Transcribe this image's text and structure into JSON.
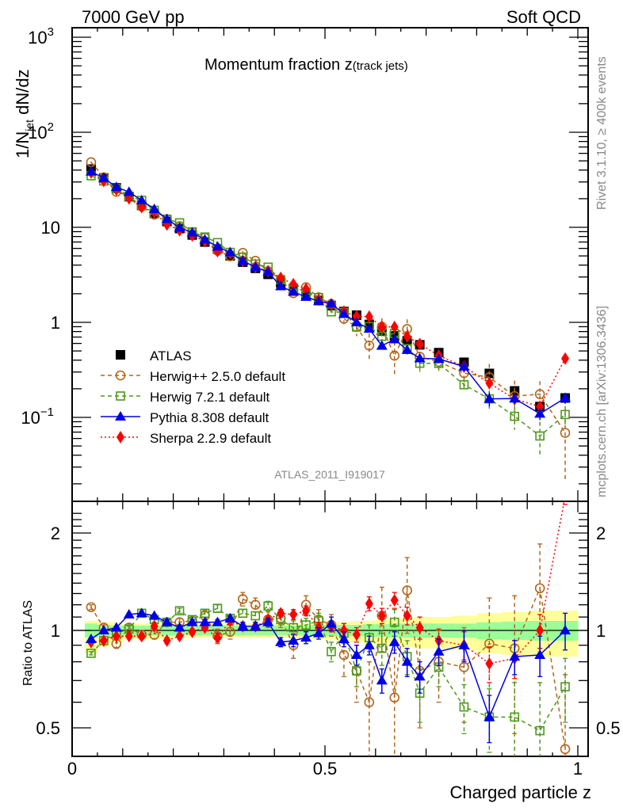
{
  "header": {
    "left": "7000 GeV pp",
    "right": "Soft QCD"
  },
  "side_labels": {
    "rivet": "Rivet 3.1.10, ≥ 400k events",
    "mcplots": "mcplots.cern.ch [arXiv:1306.3436]"
  },
  "chart_data": [
    {
      "type": "scatter",
      "panel": "main",
      "title": "Momentum fraction z",
      "title_suffix": "(track jets)",
      "xlabel": "Charged particle z",
      "ylabel": "1/N_jet dN/dz",
      "ylabel_parts": {
        "pre": "1/N",
        "sub": "jet",
        "post": " dN/dz"
      },
      "xlim": [
        0,
        1
      ],
      "ylim": [
        0.013,
        1300
      ],
      "yscale": "log",
      "yticks": [
        {
          "value": 1000,
          "base": "10",
          "exp": "3"
        },
        {
          "value": 100,
          "base": "10",
          "exp": "2"
        },
        {
          "value": 10,
          "base": "10",
          "exp": ""
        },
        {
          "value": 1,
          "base": "1",
          "exp": ""
        },
        {
          "value": 0.1,
          "base": "10",
          "exp": "−1"
        }
      ],
      "watermark": "ATLAS_2011_I919017",
      "legend_position": "bottom-left",
      "x": [
        0.0375,
        0.0625,
        0.0875,
        0.1125,
        0.1375,
        0.1625,
        0.1875,
        0.2125,
        0.2375,
        0.2625,
        0.2875,
        0.3125,
        0.3375,
        0.3625,
        0.3875,
        0.4125,
        0.4375,
        0.4625,
        0.4875,
        0.5125,
        0.5375,
        0.5625,
        0.5875,
        0.6125,
        0.6375,
        0.6625,
        0.6875,
        0.725,
        0.775,
        0.825,
        0.875,
        0.925,
        0.975
      ],
      "series": [
        {
          "name": "ATLAS",
          "color": "#000000",
          "marker": "square-filled",
          "line": "none",
          "values": [
            41,
            33,
            26,
            21,
            17,
            14,
            11.5,
            9.7,
            8.3,
            7.0,
            5.9,
            5.0,
            4.3,
            3.7,
            3.2,
            2.6,
            2.25,
            1.95,
            1.7,
            1.5,
            1.3,
            1.19,
            0.95,
            0.81,
            0.72,
            0.64,
            0.58,
            0.48,
            0.38,
            0.29,
            0.19,
            0.13,
            0.16
          ]
        },
        {
          "name": "Herwig++ 2.5.0 default",
          "color": "#b3661a",
          "marker": "circle-open",
          "line": "dashed"
        },
        {
          "name": "Herwig 7.2.1 default",
          "color": "#4c9a1a",
          "marker": "square-open",
          "line": "dashed"
        },
        {
          "name": "Pythia 8.308 default",
          "color": "#0000e6",
          "marker": "triangle-filled",
          "line": "solid"
        },
        {
          "name": "Sherpa 2.2.9 default",
          "color": "#ff0000",
          "marker": "diamond-filled",
          "line": "dotted"
        }
      ]
    },
    {
      "type": "scatter",
      "panel": "ratio",
      "xlabel": "Charged particle z",
      "ylabel": "Ratio to ATLAS",
      "xlim": [
        0,
        1
      ],
      "ylim": [
        0.42,
        2.4
      ],
      "yscale": "log",
      "yticks": [
        {
          "value": 0.5,
          "label": "0.5"
        },
        {
          "value": 1,
          "label": "1"
        },
        {
          "value": 2,
          "label": "2"
        }
      ],
      "xticks": [
        {
          "value": 0,
          "label": "0"
        },
        {
          "value": 0.5,
          "label": "0.5"
        },
        {
          "value": 1,
          "label": "1"
        }
      ],
      "reference_line": 1,
      "bands": {
        "stat_color": "#99ff99",
        "total_color": "#ffff99",
        "stat_halfwidth": [
          0.05,
          0.04,
          0.035,
          0.035,
          0.035,
          0.035,
          0.035,
          0.035,
          0.035,
          0.035,
          0.035,
          0.035,
          0.035,
          0.035,
          0.035,
          0.035,
          0.035,
          0.035,
          0.04,
          0.04,
          0.04,
          0.04,
          0.045,
          0.045,
          0.05,
          0.05,
          0.05,
          0.05,
          0.05,
          0.06,
          0.065,
          0.07,
          0.07
        ],
        "total_low": [
          0.15,
          0.11,
          0.08,
          0.06,
          0.06,
          0.06,
          0.06,
          0.05,
          0.05,
          0.05,
          0.05,
          0.05,
          0.05,
          0.05,
          0.05,
          0.05,
          0.05,
          0.05,
          0.06,
          0.06,
          0.07,
          0.08,
          0.09,
          0.1,
          0.1,
          0.11,
          0.12,
          0.12,
          0.13,
          0.15,
          0.16,
          0.17,
          0.17
        ],
        "total_high": [
          0.07,
          0.06,
          0.06,
          0.05,
          0.05,
          0.05,
          0.05,
          0.05,
          0.05,
          0.05,
          0.05,
          0.05,
          0.05,
          0.05,
          0.05,
          0.05,
          0.05,
          0.05,
          0.06,
          0.06,
          0.06,
          0.07,
          0.07,
          0.08,
          0.09,
          0.09,
          0.1,
          0.1,
          0.11,
          0.13,
          0.14,
          0.15,
          0.15
        ]
      },
      "series": [
        {
          "name": "Herwig++ 2.5.0 default",
          "values": [
            1.18,
            1.02,
            0.91,
            1.02,
            0.97,
            0.97,
            1.06,
            1.06,
            1.07,
            1.11,
            0.96,
            0.99,
            1.25,
            1.2,
            1.08,
            1.09,
            0.9,
            1.2,
            1.08,
            1.04,
            0.84,
            0.75,
            0.6,
            1.11,
            0.62,
            1.33,
            0.75,
            0.8,
            0.77,
            0.91,
            0.88,
            1.35,
            0.43
          ],
          "err": [
            0.02,
            0.02,
            0.03,
            0.03,
            0.03,
            0.03,
            0.03,
            0.03,
            0.03,
            0.04,
            0.05,
            0.05,
            0.06,
            0.06,
            0.06,
            0.07,
            0.08,
            0.08,
            0.08,
            0.08,
            0.12,
            0.15,
            0.2,
            0.25,
            0.25,
            0.35,
            0.25,
            0.2,
            0.25,
            0.35,
            0.4,
            0.5,
            0.3
          ]
        },
        {
          "name": "Herwig 7.2.1 default",
          "values": [
            0.85,
            0.93,
            0.98,
            1.01,
            1.13,
            1.08,
            1.06,
            1.15,
            1.08,
            1.13,
            1.17,
            1.09,
            1.13,
            1.11,
            1.19,
            1.08,
            1.02,
            1.04,
            1.07,
            0.86,
            0.98,
            0.75,
            0.95,
            0.88,
            1.06,
            0.83,
            0.64,
            0.77,
            0.58,
            0.54,
            0.54,
            0.49,
            0.67
          ],
          "err": [
            0.01,
            0.01,
            0.02,
            0.02,
            0.02,
            0.02,
            0.02,
            0.02,
            0.02,
            0.03,
            0.03,
            0.03,
            0.03,
            0.03,
            0.04,
            0.04,
            0.05,
            0.05,
            0.06,
            0.06,
            0.07,
            0.08,
            0.09,
            0.1,
            0.1,
            0.1,
            0.12,
            0.1,
            0.1,
            0.12,
            0.15,
            0.2,
            0.15
          ]
        },
        {
          "name": "Pythia 8.308 default",
          "values": [
            0.94,
            1.0,
            1.02,
            1.12,
            1.13,
            1.11,
            1.06,
            1.02,
            1.06,
            1.06,
            1.06,
            1.09,
            1.03,
            1.03,
            1.06,
            0.92,
            0.93,
            0.95,
            0.98,
            1.05,
            0.94,
            0.84,
            0.9,
            0.7,
            0.92,
            0.8,
            0.72,
            0.86,
            0.9,
            0.54,
            0.83,
            0.84,
            1.0
          ],
          "err": [
            0.01,
            0.01,
            0.01,
            0.01,
            0.01,
            0.01,
            0.02,
            0.02,
            0.02,
            0.02,
            0.02,
            0.02,
            0.03,
            0.03,
            0.03,
            0.03,
            0.04,
            0.04,
            0.04,
            0.05,
            0.05,
            0.06,
            0.06,
            0.06,
            0.07,
            0.08,
            0.08,
            0.08,
            0.1,
            0.09,
            0.1,
            0.12,
            0.13
          ]
        },
        {
          "name": "Sherpa 2.2.9 default",
          "values": [
            0.92,
            0.93,
            0.96,
            0.96,
            0.96,
            1.03,
            0.93,
            0.96,
            0.99,
            1.02,
            0.95,
            1.07,
            1.03,
            1.03,
            1.08,
            1.13,
            1.12,
            1.15,
            1.02,
            1.03,
            1.0,
            0.97,
            1.21,
            1.11,
            1.24,
            1.11,
            1.02,
            0.93,
            0.9,
            0.79,
            0.82,
            1.0,
            2.6
          ],
          "err": [
            0.01,
            0.01,
            0.01,
            0.01,
            0.02,
            0.02,
            0.02,
            0.02,
            0.02,
            0.02,
            0.03,
            0.03,
            0.03,
            0.03,
            0.03,
            0.03,
            0.04,
            0.04,
            0.04,
            0.04,
            0.05,
            0.05,
            0.06,
            0.06,
            0.07,
            0.07,
            0.08,
            0.08,
            0.09,
            0.1,
            0.11,
            0.12,
            0.15
          ]
        }
      ]
    }
  ]
}
